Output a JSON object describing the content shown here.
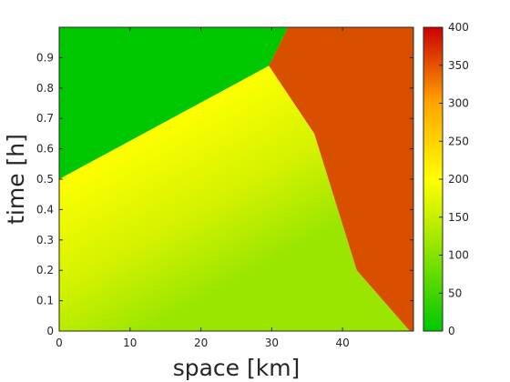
{
  "chart_data": {
    "type": "heatmap",
    "title": "",
    "xlabel": "space [km]",
    "ylabel": "time [h]",
    "xlim": [
      0,
      50
    ],
    "ylim": [
      0,
      1
    ],
    "xticks": [
      0,
      10,
      20,
      30,
      40
    ],
    "yticks": [
      0,
      0.1,
      0.2,
      0.3,
      0.4,
      0.5,
      0.6,
      0.7,
      0.8,
      0.9
    ],
    "grid": false,
    "colorbar": {
      "range": [
        0,
        400
      ],
      "ticks": [
        0,
        50,
        100,
        150,
        200,
        250,
        300,
        350,
        400
      ],
      "colors": [
        "#00c800",
        "#c8f000",
        "#ffff00",
        "#ffa500",
        "#cc0000"
      ],
      "color_positions": [
        0,
        0.375,
        0.5,
        0.75,
        1
      ]
    },
    "regions": [
      {
        "id": "free-flow-upper-left",
        "value": 0,
        "color": "#00c800",
        "polygon": [
          [
            0,
            0.5
          ],
          [
            29.6,
            0.873
          ],
          [
            32.3,
            1
          ],
          [
            0,
            1
          ]
        ]
      },
      {
        "id": "rarefaction-fan",
        "value_range": [
          125,
          200
        ],
        "color_start": "#ffff00",
        "color_end": "#9be600",
        "polygon": [
          [
            0,
            0
          ],
          [
            49.5,
            0
          ],
          [
            42,
            0.2
          ],
          [
            36,
            0.65
          ],
          [
            29.6,
            0.873
          ],
          [
            0,
            0.5
          ]
        ]
      },
      {
        "id": "congested-right",
        "value": 330,
        "color": "#d94f00",
        "polygon": [
          [
            29.6,
            0.873
          ],
          [
            36,
            0.65
          ],
          [
            42,
            0.2
          ],
          [
            49.5,
            0
          ],
          [
            50,
            0
          ],
          [
            50,
            1
          ],
          [
            32.3,
            1
          ]
        ]
      }
    ]
  }
}
